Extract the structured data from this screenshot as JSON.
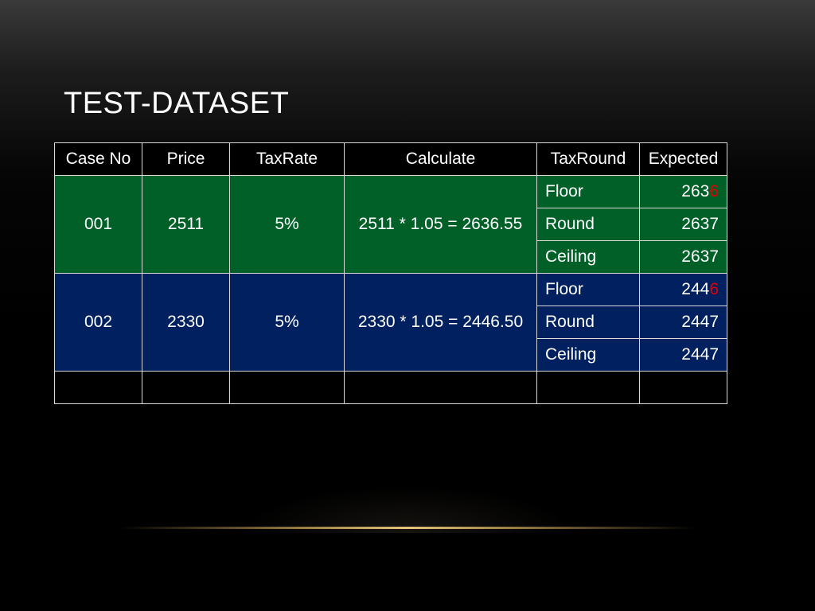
{
  "slide": {
    "title": "TEST-DATASET"
  },
  "table": {
    "headers": [
      "Case No",
      "Price",
      "TaxRate",
      "Calculate",
      "TaxRound",
      "Expected"
    ],
    "cases": [
      {
        "case_no": "001",
        "price": "2511",
        "tax_rate": "5%",
        "calculate": "2511 * 1.05 = 2636.55",
        "color": "#006028",
        "rounds": [
          {
            "method": "Floor",
            "expected_prefix": "263",
            "expected_highlight": "6"
          },
          {
            "method": "Round",
            "expected_prefix": "2637",
            "expected_highlight": ""
          },
          {
            "method": "Ceiling",
            "expected_prefix": "2637",
            "expected_highlight": ""
          }
        ]
      },
      {
        "case_no": "002",
        "price": "2330",
        "tax_rate": "5%",
        "calculate": "2330 * 1.05 = 2446.50",
        "color": "#002060",
        "rounds": [
          {
            "method": "Floor",
            "expected_prefix": "244",
            "expected_highlight": "6"
          },
          {
            "method": "Round",
            "expected_prefix": "2447",
            "expected_highlight": ""
          },
          {
            "method": "Ceiling",
            "expected_prefix": "2447",
            "expected_highlight": ""
          }
        ]
      }
    ],
    "highlight_color": "#e30000"
  }
}
